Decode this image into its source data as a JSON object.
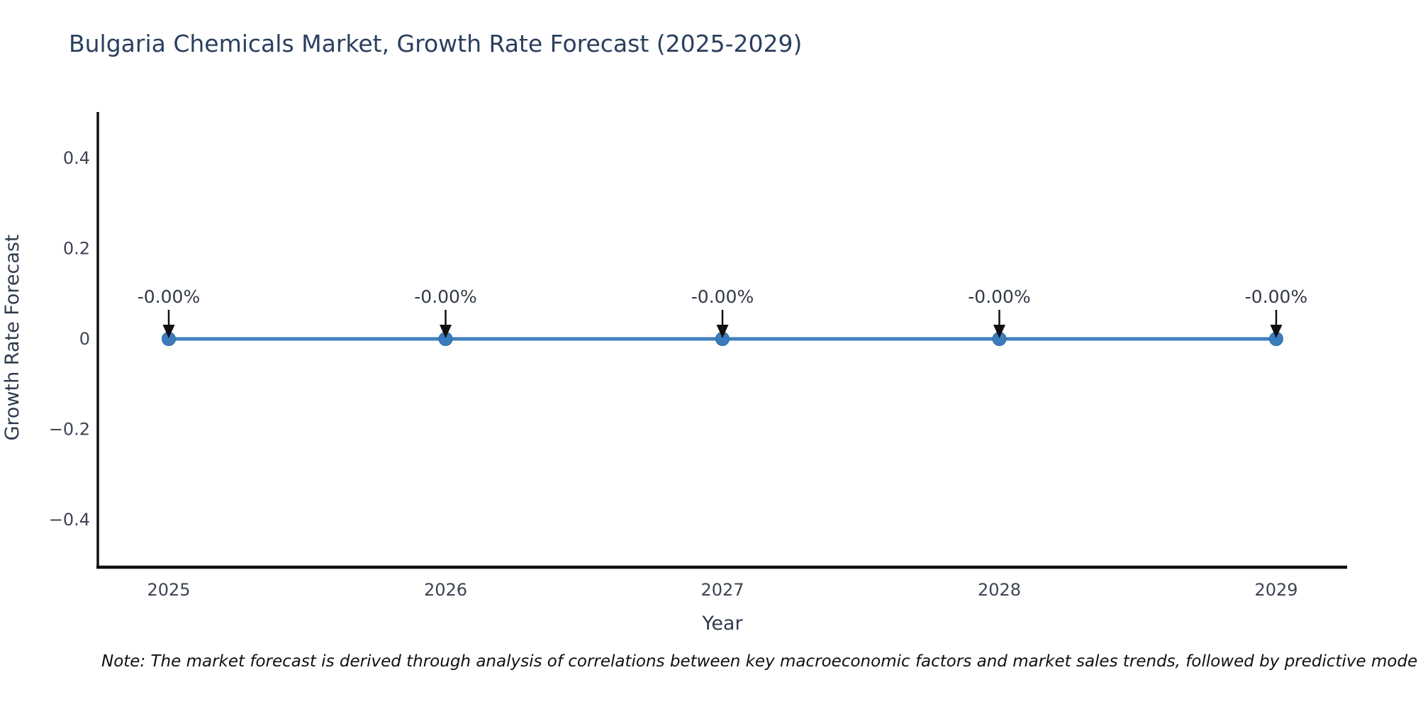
{
  "title": "Bulgaria Chemicals Market, Growth Rate Forecast (2025-2029)",
  "note": "Note: The market forecast is derived through analysis of correlations between key macroeconomic factors and market sales trends, followed by predictive modeling to project future sa",
  "chart_data": {
    "type": "line",
    "title": "Bulgaria Chemicals Market, Growth Rate Forecast (2025-2029)",
    "xlabel": "Year",
    "ylabel": "Growth Rate Forecast",
    "x": [
      2025,
      2026,
      2027,
      2028,
      2029
    ],
    "y": [
      0,
      0,
      0,
      0,
      0
    ],
    "series": [
      {
        "name": "Growth Rate Forecast",
        "values": [
          0,
          0,
          0,
          0,
          0
        ]
      }
    ],
    "point_labels": [
      "-0.00%",
      "-0.00%",
      "-0.00%",
      "-0.00%",
      "-0.00%"
    ],
    "xticks": [
      "2025",
      "2026",
      "2027",
      "2028",
      "2029"
    ],
    "yticks": [
      {
        "value": 0.4,
        "label": "0.4"
      },
      {
        "value": 0.2,
        "label": "0.2"
      },
      {
        "value": 0,
        "label": "0"
      },
      {
        "value": -0.2,
        "label": "−0.2"
      },
      {
        "value": -0.4,
        "label": "−0.4"
      }
    ],
    "ylim": [
      -0.5,
      0.5
    ],
    "xlim": [
      2024.74,
      2029.26
    ],
    "grid": false,
    "legend": "none",
    "colors": {
      "line": "#4181bd",
      "marker": "#3b7cbd",
      "marker_border": "#2f6ba3",
      "arrow": "#101010",
      "axis_line": "#101010",
      "title_text": "#2a3f5f",
      "axis_title_text": "#2f3a4e",
      "tick_text": "#3d4452",
      "annotation_text": "#333a45",
      "background": "#ffffff"
    }
  }
}
